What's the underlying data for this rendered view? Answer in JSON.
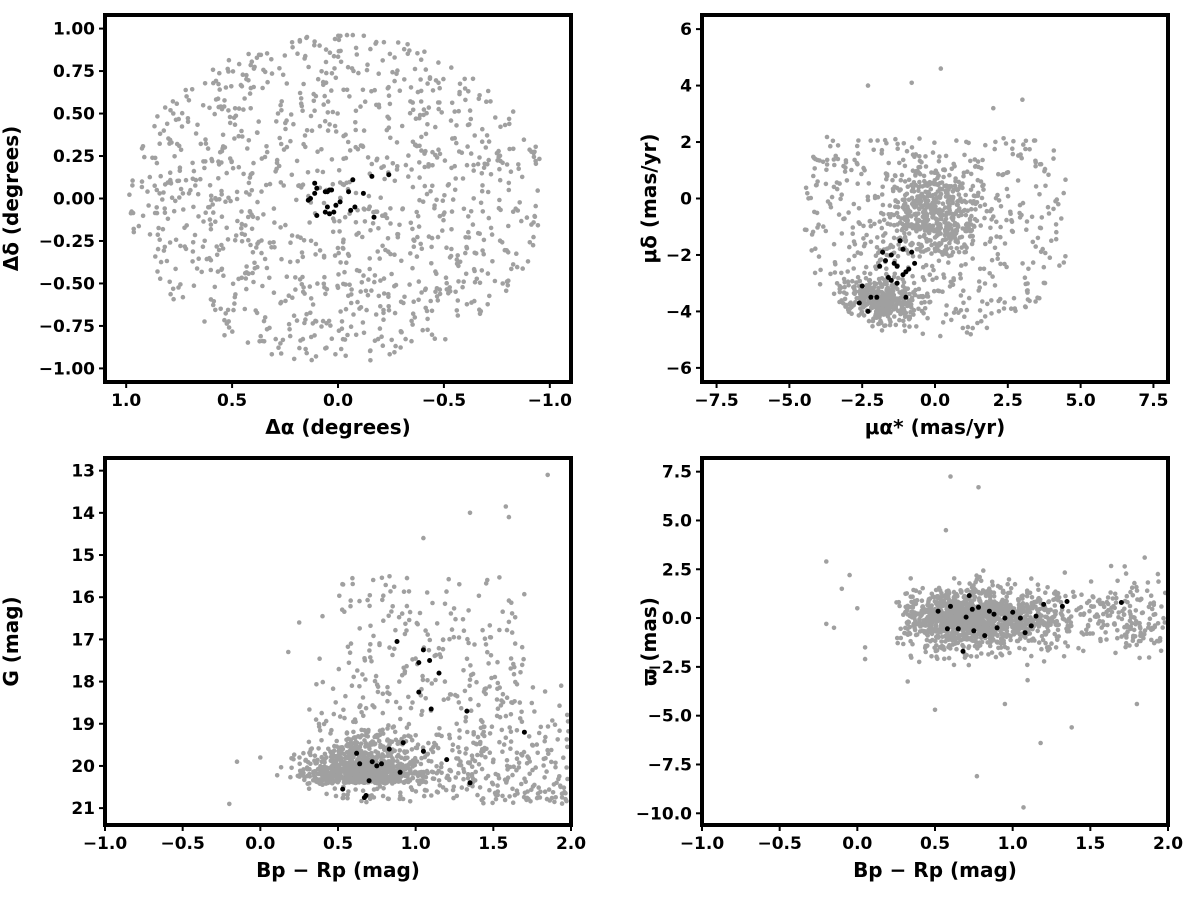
{
  "colors": {
    "field": "#a0a0a0",
    "members": "#000000",
    "frame": "#000000"
  },
  "chart_data": [
    {
      "type": "scatter",
      "id": "sky",
      "xlabel": "Δα (degrees)",
      "ylabel": "Δδ (degrees)",
      "xlim": [
        1.1,
        -1.1
      ],
      "ylim": [
        -1.08,
        1.08
      ],
      "x_inverted": true,
      "xticks": [
        1.0,
        0.5,
        0.0,
        -0.5,
        -1.0
      ],
      "xtick_labels": [
        "1.0",
        "0.5",
        "0.0",
        "−0.5",
        "−1.0"
      ],
      "yticks": [
        -1.0,
        -0.75,
        -0.5,
        -0.25,
        0.0,
        0.25,
        0.5,
        0.75,
        1.0
      ],
      "ytick_labels": [
        "−1.00",
        "−0.75",
        "−0.50",
        "−0.25",
        "0.00",
        "0.25",
        "0.50",
        "0.75",
        "1.00"
      ],
      "grid": false,
      "series": [
        {
          "role": "field",
          "n_points": 1100,
          "distribution": "uniform disk",
          "center": [
            0.0,
            0.0
          ],
          "radius": 1.0
        },
        {
          "role": "members",
          "points": [
            [
              0.14,
              -0.01
            ],
            [
              0.13,
              0.0
            ],
            [
              0.11,
              0.03
            ],
            [
              0.1,
              0.06
            ],
            [
              0.11,
              0.09
            ],
            [
              0.1,
              -0.1
            ],
            [
              0.06,
              -0.08
            ],
            [
              0.05,
              -0.05
            ],
            [
              0.04,
              -0.09
            ],
            [
              0.02,
              -0.08
            ],
            [
              0.01,
              -0.04
            ],
            [
              -0.01,
              -0.02
            ],
            [
              0.04,
              0.05
            ],
            [
              0.03,
              0.05
            ],
            [
              0.06,
              0.04
            ],
            [
              0.05,
              0.04
            ],
            [
              -0.05,
              0.04
            ],
            [
              -0.07,
              0.11
            ],
            [
              -0.06,
              -0.07
            ],
            [
              -0.08,
              -0.05
            ],
            [
              -0.12,
              0.03
            ],
            [
              -0.16,
              0.13
            ],
            [
              -0.17,
              -0.11
            ],
            [
              -0.24,
              0.14
            ]
          ]
        }
      ]
    },
    {
      "type": "scatter",
      "id": "proper-motion",
      "xlabel": "μα* (mas/yr)",
      "ylabel": "μδ (mas/yr)",
      "xlim": [
        -8,
        8
      ],
      "ylim": [
        -6.5,
        6.5
      ],
      "xticks": [
        -7.5,
        -5.0,
        -2.5,
        0.0,
        2.5,
        5.0,
        7.5
      ],
      "xtick_labels": [
        "−7.5",
        "−5.0",
        "−2.5",
        "0.0",
        "2.5",
        "5.0",
        "7.5"
      ],
      "yticks": [
        -6,
        -4,
        -2,
        0,
        2,
        4,
        6
      ],
      "ytick_labels": [
        "−6",
        "−4",
        "−2",
        "0",
        "2",
        "4",
        "6"
      ],
      "grid": false,
      "series": [
        {
          "role": "field",
          "n_points": 1300,
          "distribution": "clustered around (0, -1) with arc toward (-2.5, -4)"
        },
        {
          "role": "members",
          "points": [
            [
              -2.5,
              -3.1
            ],
            [
              -2.2,
              -3.5
            ],
            [
              -2.3,
              -4.0
            ],
            [
              -2.0,
              -3.5
            ],
            [
              -1.9,
              -2.4
            ],
            [
              -1.7,
              -2.2
            ],
            [
              -1.8,
              -1.9
            ],
            [
              -1.5,
              -2.9
            ],
            [
              -1.5,
              -2.0
            ],
            [
              -1.3,
              -2.4
            ],
            [
              -1.3,
              -3.0
            ],
            [
              -1.2,
              -1.5
            ],
            [
              -1.1,
              -1.8
            ],
            [
              -1.0,
              -2.6
            ],
            [
              -1.1,
              -2.7
            ],
            [
              -0.9,
              -2.5
            ],
            [
              -1.0,
              -3.5
            ],
            [
              -0.8,
              -1.9
            ],
            [
              -0.7,
              -2.3
            ],
            [
              -2.6,
              -3.7
            ],
            [
              -1.4,
              -2.3
            ],
            [
              -1.6,
              -2.8
            ]
          ]
        }
      ]
    },
    {
      "type": "scatter",
      "id": "cmd",
      "xlabel": "Bp − Rp (mag)",
      "ylabel": "G (mag)",
      "xlim": [
        -1.0,
        2.0
      ],
      "ylim": [
        21.4,
        12.7
      ],
      "y_inverted": true,
      "xticks": [
        -1.0,
        -0.5,
        0.0,
        0.5,
        1.0,
        1.5,
        2.0
      ],
      "xtick_labels": [
        "−1.0",
        "−0.5",
        "0.0",
        "0.5",
        "1.0",
        "1.5",
        "2.0"
      ],
      "yticks": [
        13,
        14,
        15,
        16,
        17,
        18,
        19,
        20,
        21
      ],
      "ytick_labels": [
        "13",
        "14",
        "15",
        "16",
        "17",
        "18",
        "19",
        "20",
        "21"
      ],
      "grid": false,
      "series": [
        {
          "role": "field",
          "n_points": 1500,
          "distribution": "dense clump near (0.65, 20.4), spreading to fainter/redder"
        },
        {
          "role": "members",
          "points": [
            [
              0.53,
              20.55
            ],
            [
              0.67,
              20.75
            ],
            [
              0.68,
              20.7
            ],
            [
              0.7,
              20.35
            ],
            [
              0.75,
              20.0
            ],
            [
              0.72,
              19.9
            ],
            [
              0.64,
              19.95
            ],
            [
              0.62,
              19.7
            ],
            [
              0.78,
              19.95
            ],
            [
              0.83,
              19.6
            ],
            [
              0.9,
              20.15
            ],
            [
              0.92,
              19.45
            ],
            [
              1.05,
              19.65
            ],
            [
              1.1,
              18.65
            ],
            [
              1.02,
              18.25
            ],
            [
              1.15,
              17.8
            ],
            [
              1.02,
              17.55
            ],
            [
              1.09,
              17.5
            ],
            [
              1.05,
              17.25
            ],
            [
              0.88,
              17.05
            ],
            [
              1.2,
              19.85
            ],
            [
              1.33,
              18.7
            ],
            [
              1.35,
              20.4
            ],
            [
              1.7,
              19.2
            ]
          ]
        }
      ]
    },
    {
      "type": "scatter",
      "id": "parallax",
      "xlabel": "Bp − Rp (mag)",
      "ylabel": "ϖ (mas)",
      "xlim": [
        -1.0,
        2.0
      ],
      "ylim": [
        -10.6,
        8.2
      ],
      "xticks": [
        -1.0,
        -0.5,
        0.0,
        0.5,
        1.0,
        1.5,
        2.0
      ],
      "xtick_labels": [
        "−1.0",
        "−0.5",
        "0.0",
        "0.5",
        "1.0",
        "1.5",
        "2.0"
      ],
      "yticks": [
        -10.0,
        -7.5,
        -5.0,
        -2.5,
        0.0,
        2.5,
        5.0,
        7.5
      ],
      "ytick_labels": [
        "−10.0",
        "−7.5",
        "−5.0",
        "−2.5",
        "0.0",
        "2.5",
        "5.0",
        "7.5"
      ],
      "grid": false,
      "series": [
        {
          "role": "field",
          "n_points": 1500,
          "distribution": "band centered at parallax 0, color 0.3–2.0"
        },
        {
          "role": "members",
          "points": [
            [
              0.52,
              0.35
            ],
            [
              0.6,
              0.6
            ],
            [
              0.65,
              -0.55
            ],
            [
              0.68,
              -1.7
            ],
            [
              0.7,
              0.05
            ],
            [
              0.72,
              1.15
            ],
            [
              0.74,
              0.45
            ],
            [
              0.75,
              -0.65
            ],
            [
              0.78,
              0.55
            ],
            [
              0.82,
              -0.9
            ],
            [
              0.88,
              0.2
            ],
            [
              0.9,
              -0.5
            ],
            [
              0.95,
              0.0
            ],
            [
              1.0,
              0.3
            ],
            [
              1.05,
              0.0
            ],
            [
              1.08,
              -0.75
            ],
            [
              1.12,
              -0.4
            ],
            [
              1.15,
              0.1
            ],
            [
              1.2,
              0.7
            ],
            [
              1.32,
              0.6
            ],
            [
              1.35,
              0.85
            ],
            [
              1.7,
              0.8
            ],
            [
              0.58,
              -0.55
            ],
            [
              0.85,
              0.35
            ]
          ]
        }
      ]
    }
  ]
}
